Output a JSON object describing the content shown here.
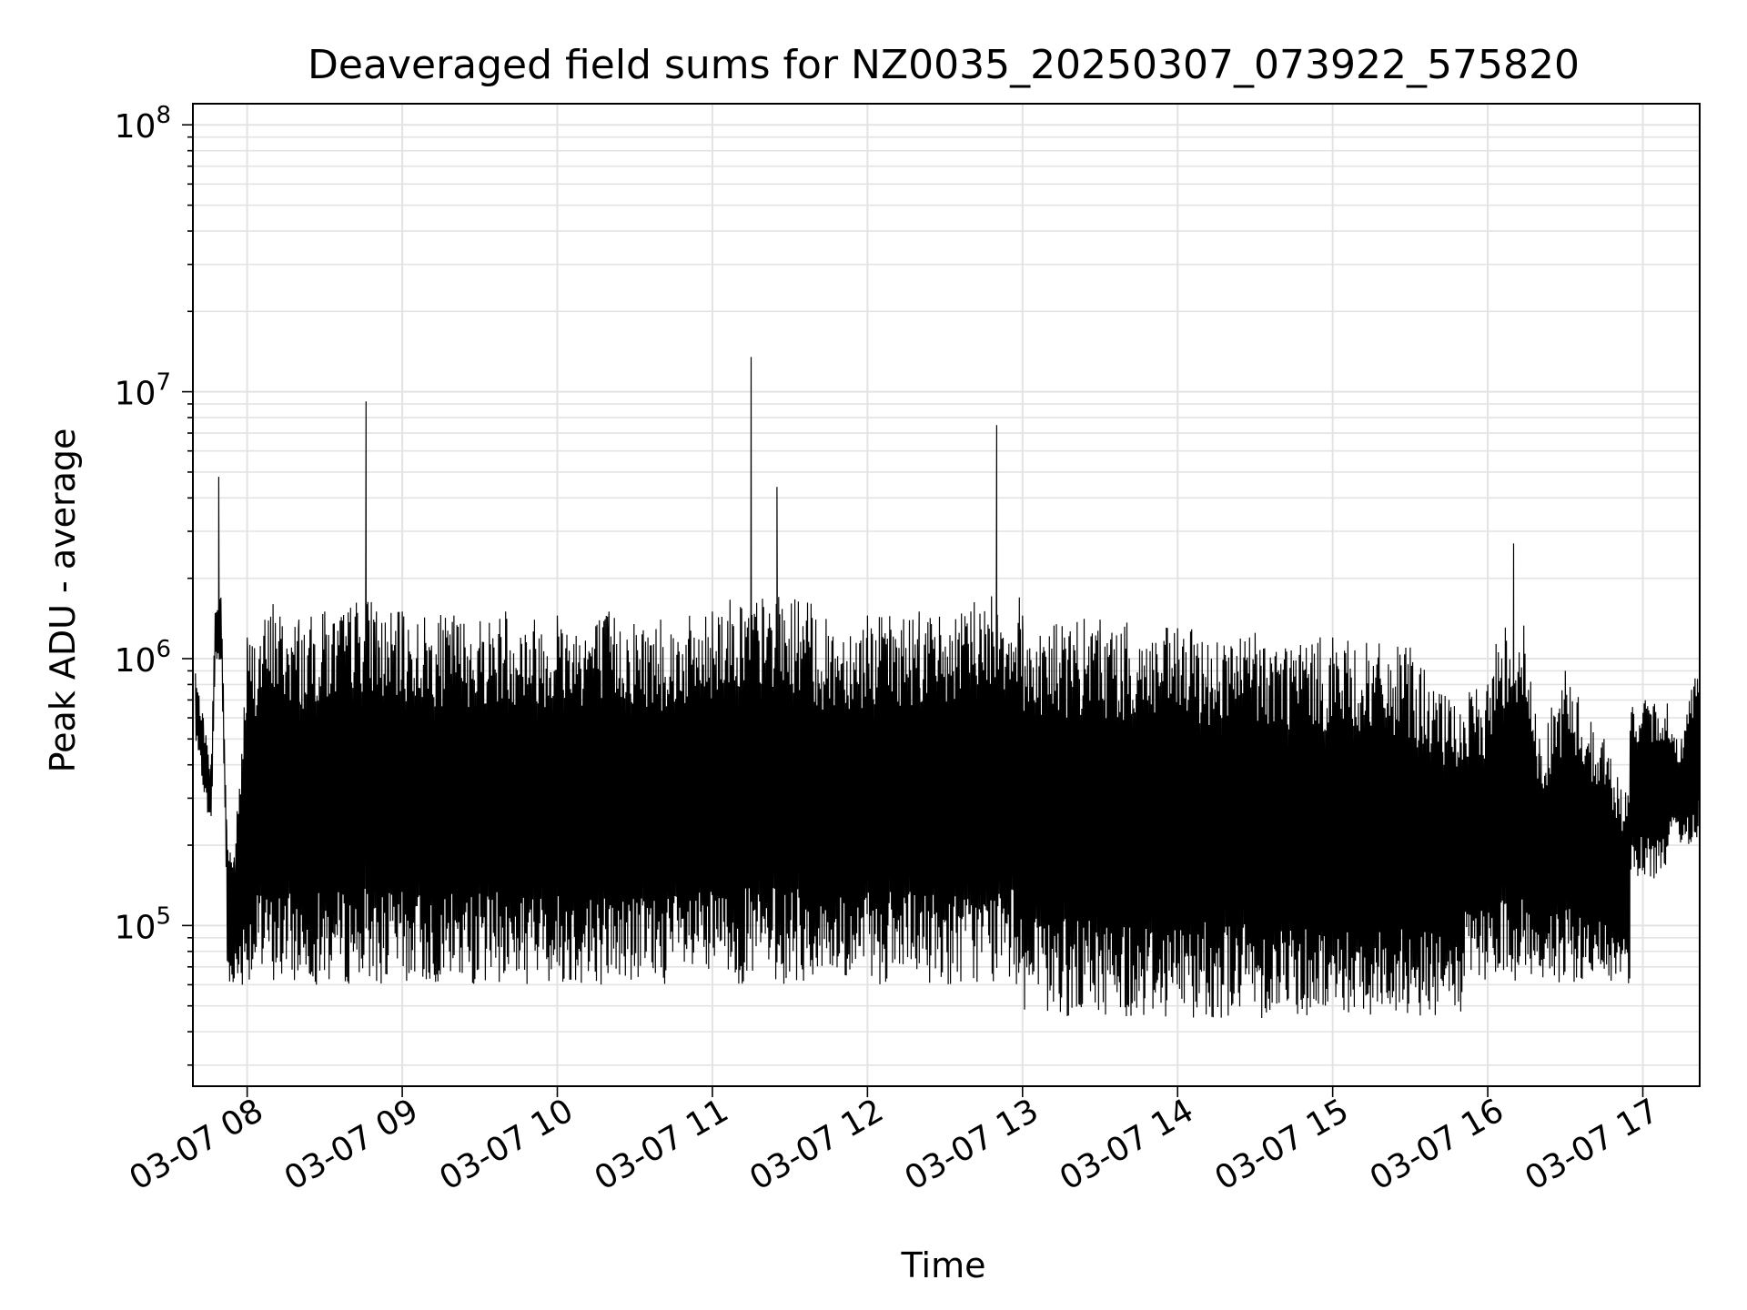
{
  "chart_data": {
    "type": "line",
    "title": "Deaveraged field sums for NZ0035_20250307_073922_575820",
    "xlabel": "Time",
    "ylabel": "Peak ADU - average",
    "yscale": "log",
    "ylim": [
      25000,
      120000000
    ],
    "xlim": [
      "2025-03-07 07:39",
      "2025-03-07 17:22"
    ],
    "grid": true,
    "legend": "none",
    "line_color": "#000000",
    "x_ticks": [
      {
        "value": "2025-03-07 08:00",
        "label": "03-07 08"
      },
      {
        "value": "2025-03-07 09:00",
        "label": "03-07 09"
      },
      {
        "value": "2025-03-07 10:00",
        "label": "03-07 10"
      },
      {
        "value": "2025-03-07 11:00",
        "label": "03-07 11"
      },
      {
        "value": "2025-03-07 12:00",
        "label": "03-07 12"
      },
      {
        "value": "2025-03-07 13:00",
        "label": "03-07 13"
      },
      {
        "value": "2025-03-07 14:00",
        "label": "03-07 14"
      },
      {
        "value": "2025-03-07 15:00",
        "label": "03-07 15"
      },
      {
        "value": "2025-03-07 16:00",
        "label": "03-07 16"
      },
      {
        "value": "2025-03-07 17:00",
        "label": "03-07 17"
      }
    ],
    "y_ticks": [
      {
        "value": 100000,
        "base": "10",
        "exp": "5"
      },
      {
        "value": 1000000,
        "base": "10",
        "exp": "6"
      },
      {
        "value": 10000000,
        "base": "10",
        "exp": "7"
      },
      {
        "value": 100000000,
        "base": "10",
        "exp": "8"
      }
    ],
    "series": [
      {
        "x": [
          "2025-03-07 07:40",
          "2025-03-07 07:43",
          "2025-03-07 07:46",
          "2025-03-07 07:49",
          "2025-03-07 07:52",
          "2025-03-07 07:55",
          "2025-03-07 08:00",
          "2025-03-07 08:10",
          "2025-03-07 08:20",
          "2025-03-07 08:30",
          "2025-03-07 08:40",
          "2025-03-07 08:46",
          "2025-03-07 08:50",
          "2025-03-07 09:00",
          "2025-03-07 09:20",
          "2025-03-07 09:40",
          "2025-03-07 10:00",
          "2025-03-07 10:20",
          "2025-03-07 10:40",
          "2025-03-07 11:00",
          "2025-03-07 11:15",
          "2025-03-07 11:25",
          "2025-03-07 11:40",
          "2025-03-07 12:00",
          "2025-03-07 12:20",
          "2025-03-07 12:40",
          "2025-03-07 12:50",
          "2025-03-07 13:00",
          "2025-03-07 13:30",
          "2025-03-07 14:00",
          "2025-03-07 14:30",
          "2025-03-07 15:00",
          "2025-03-07 15:30",
          "2025-03-07 15:45",
          "2025-03-07 16:00",
          "2025-03-07 16:10",
          "2025-03-07 16:20",
          "2025-03-07 16:30",
          "2025-03-07 16:45",
          "2025-03-07 16:55",
          "2025-03-07 17:05",
          "2025-03-07 17:15",
          "2025-03-07 17:22"
        ],
        "y": [
          880000,
          600000,
          400000,
          4800000,
          250000,
          180000,
          1200000,
          1600000,
          1400000,
          1500000,
          1550000,
          9200000,
          1500000,
          1500000,
          1450000,
          1500000,
          1450000,
          1500000,
          1400000,
          1500000,
          13500000,
          4400000,
          1400000,
          1450000,
          1500000,
          1500000,
          7500000,
          1450000,
          1400000,
          1300000,
          1250000,
          1200000,
          1100000,
          700000,
          800000,
          2700000,
          500000,
          900000,
          500000,
          300000,
          600000,
          500000,
          1200000
        ]
      }
    ],
    "noise_envelope": {
      "upper_typical": 1500000,
      "lower_typical": 60000,
      "lower_min": 37000
    }
  }
}
